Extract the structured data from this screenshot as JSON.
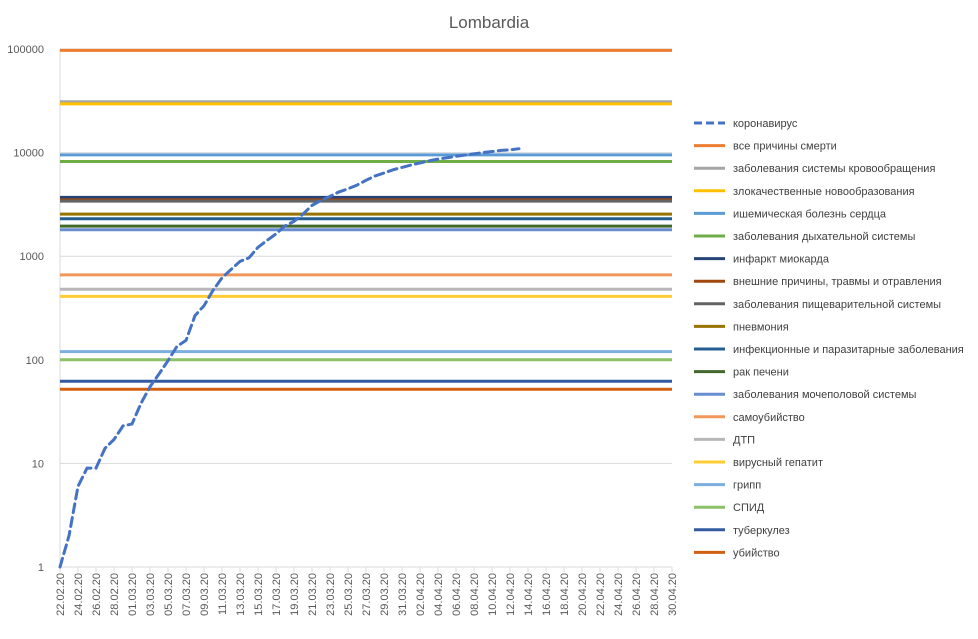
{
  "chart_data": {
    "type": "line",
    "title": "Lombardia",
    "xlabel": "",
    "ylabel": "",
    "y_scale": "log",
    "ylim": [
      1,
      100000
    ],
    "y_ticks": [
      "1",
      "10",
      "100",
      "1000",
      "10000",
      "100000"
    ],
    "grid": true,
    "legend_position": "right",
    "x": [
      "22.02.20",
      "24.02.20",
      "26.02.20",
      "28.02.20",
      "01.03.20",
      "03.03.20",
      "05.03.20",
      "07.03.20",
      "09.03.20",
      "11.03.20",
      "13.03.20",
      "15.03.20",
      "17.03.20",
      "19.03.20",
      "21.03.20",
      "23.03.20",
      "25.03.20",
      "27.03.20",
      "29.03.20",
      "31.03.20",
      "02.04.20",
      "04.04.20",
      "06.04.20",
      "08.04.20",
      "10.04.20",
      "12.04.20",
      "14.04.20",
      "16.04.20",
      "18.04.20",
      "20.04.20",
      "22.04.20",
      "24.04.20",
      "26.04.20",
      "28.04.20",
      "30.04.20"
    ],
    "x_range": [
      "22.02.20",
      "30.04.20"
    ],
    "series": [
      {
        "name": "коронавирус",
        "color": "#4472c4",
        "style": "dashed",
        "points": [
          [
            "22.02.20",
            1
          ],
          [
            "23.02.20",
            2
          ],
          [
            "24.02.20",
            6
          ],
          [
            "25.02.20",
            9
          ],
          [
            "26.02.20",
            9
          ],
          [
            "27.02.20",
            14
          ],
          [
            "28.02.20",
            17
          ],
          [
            "29.02.20",
            23
          ],
          [
            "01.03.20",
            24
          ],
          [
            "02.03.20",
            38
          ],
          [
            "03.03.20",
            55
          ],
          [
            "04.03.20",
            73
          ],
          [
            "05.03.20",
            98
          ],
          [
            "06.03.20",
            135
          ],
          [
            "07.03.20",
            154
          ],
          [
            "08.03.20",
            267
          ],
          [
            "09.03.20",
            333
          ],
          [
            "10.03.20",
            468
          ],
          [
            "11.03.20",
            617
          ],
          [
            "12.03.20",
            744
          ],
          [
            "13.03.20",
            890
          ],
          [
            "14.03.20",
            966
          ],
          [
            "15.03.20",
            1218
          ],
          [
            "16.03.20",
            1420
          ],
          [
            "17.03.20",
            1640
          ],
          [
            "18.03.20",
            1959
          ],
          [
            "19.03.20",
            2168
          ],
          [
            "20.03.20",
            2549
          ],
          [
            "21.03.20",
            3095
          ],
          [
            "22.03.20",
            3456
          ],
          [
            "23.03.20",
            3776
          ],
          [
            "24.03.20",
            4178
          ],
          [
            "25.03.20",
            4474
          ],
          [
            "26.03.20",
            4861
          ],
          [
            "27.03.20",
            5402
          ],
          [
            "28.03.20",
            5944
          ],
          [
            "29.03.20",
            6360
          ],
          [
            "30.03.20",
            6818
          ],
          [
            "31.03.20",
            7199
          ],
          [
            "01.04.20",
            7593
          ],
          [
            "02.04.20",
            7960
          ],
          [
            "03.04.20",
            8311
          ],
          [
            "04.04.20",
            8656
          ],
          [
            "05.04.20",
            8905
          ],
          [
            "06.04.20",
            9202
          ],
          [
            "07.04.20",
            9484
          ],
          [
            "08.04.20",
            9722
          ],
          [
            "09.04.20",
            10022
          ],
          [
            "10.04.20",
            10238
          ],
          [
            "11.04.20",
            10511
          ],
          [
            "12.04.20",
            10621
          ],
          [
            "13.04.20",
            10901
          ]
        ]
      },
      {
        "name": "все причины смерти",
        "color": "#ed7d31",
        "value": 97000
      },
      {
        "name": "заболевания системы кровообращения",
        "color": "#a5a5a5",
        "value": 31000
      },
      {
        "name": "злокачественные новообразования",
        "color": "#ffc000",
        "value": 29500
      },
      {
        "name": "ишемическая болезнь сердца",
        "color": "#5b9bd5",
        "value": 9500
      },
      {
        "name": "заболевания дыхательной системы",
        "color": "#70ad47",
        "value": 8200
      },
      {
        "name": "инфаркт миокарда",
        "color": "#264478",
        "value": 3700
      },
      {
        "name": "внешние причины, травмы и отравления",
        "color": "#9e480e",
        "value": 3500
      },
      {
        "name": "заболевания пищеварительной системы",
        "color": "#636363",
        "value": 3400
      },
      {
        "name": "пневмония",
        "color": "#997300",
        "value": 2550
      },
      {
        "name": "инфекционные и паразитарные заболевания",
        "color": "#255e91",
        "value": 2300
      },
      {
        "name": "рак печени",
        "color": "#43682b",
        "value": 1950
      },
      {
        "name": "заболевания мочеполовой системы",
        "color": "#698ed0",
        "value": 1800
      },
      {
        "name": "самоубийство",
        "color": "#f1975a",
        "value": 660
      },
      {
        "name": "ДТП",
        "color": "#b7b7b7",
        "value": 480
      },
      {
        "name": "вирусный гепатит",
        "color": "#ffcd33",
        "value": 410
      },
      {
        "name": "грипп",
        "color": "#7cafdd",
        "value": 120
      },
      {
        "name": "СПИД",
        "color": "#8cc168",
        "value": 100
      },
      {
        "name": "туберкулез",
        "color": "#335aa1",
        "value": 62
      },
      {
        "name": "убийство",
        "color": "#d26012",
        "value": 52
      }
    ]
  }
}
